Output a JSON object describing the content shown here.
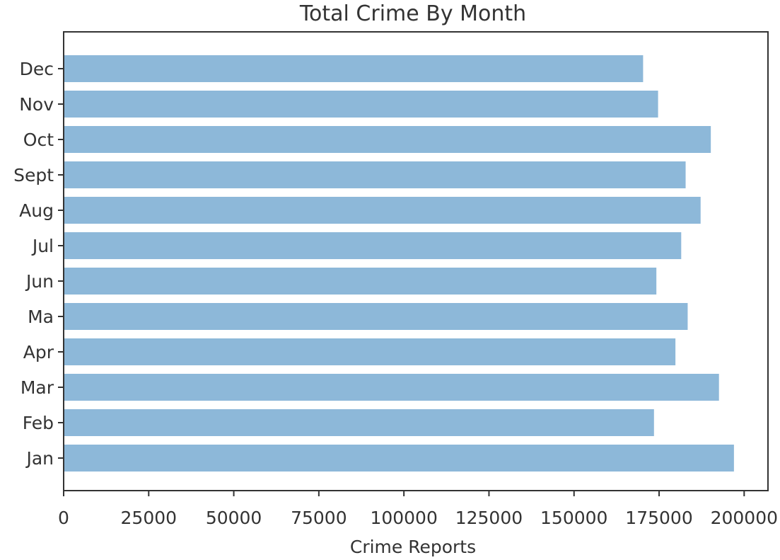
{
  "chart_data": {
    "type": "bar",
    "orientation": "horizontal",
    "title": "Total Crime By Month",
    "xlabel": "Crime Reports",
    "ylabel": "",
    "categories": [
      "Jan",
      "Feb",
      "Mar",
      "Apr",
      "Ma",
      "Jun",
      "Jul",
      "Aug",
      "Sept",
      "Oct",
      "Nov",
      "Dec"
    ],
    "values": [
      197000,
      173500,
      192600,
      179800,
      183400,
      174200,
      181500,
      187200,
      182800,
      190200,
      174700,
      170300
    ],
    "xlim": [
      0,
      207000
    ],
    "xticks": [
      "0",
      "25000",
      "50000",
      "75000",
      "100000",
      "125000",
      "150000",
      "175000",
      "200000"
    ],
    "bar_color": "#8db8d9",
    "grid": false,
    "legend": "none"
  }
}
